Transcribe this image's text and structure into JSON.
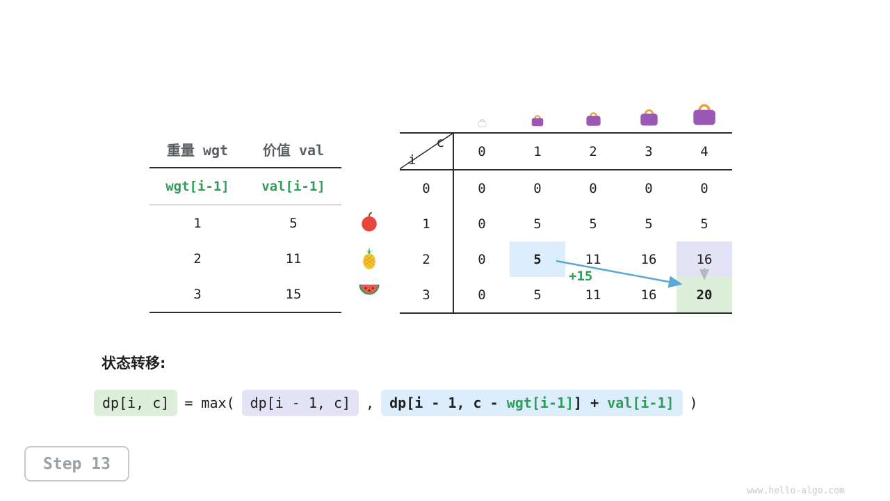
{
  "items_table": {
    "headers": [
      "重量 wgt",
      "价值 val"
    ],
    "var_row": [
      "wgt[i-1]",
      "val[i-1]"
    ],
    "rows": [
      [
        "1",
        "5"
      ],
      [
        "2",
        "11"
      ],
      [
        "3",
        "15"
      ]
    ]
  },
  "fruits": [
    {
      "icon": "apple-icon"
    },
    {
      "icon": "pineapple-icon"
    },
    {
      "icon": "watermelon-icon"
    }
  ],
  "dp_table": {
    "corner": {
      "col_var": "c",
      "row_var": "i"
    },
    "col_headers": [
      "0",
      "1",
      "2",
      "3",
      "4"
    ],
    "row_headers": [
      "0",
      "1",
      "2",
      "3"
    ],
    "rows": [
      [
        "0",
        "0",
        "0",
        "0",
        "0"
      ],
      [
        "0",
        "5",
        "5",
        "5",
        "5"
      ],
      [
        "0",
        "5",
        "11",
        "16",
        "16"
      ],
      [
        "0",
        "5",
        "11",
        "16",
        "20"
      ]
    ],
    "highlights": [
      {
        "row": 2,
        "col": 1,
        "style": "blue",
        "bold": true
      },
      {
        "row": 2,
        "col": 4,
        "style": "purple",
        "bold": false
      },
      {
        "row": 3,
        "col": 4,
        "style": "green",
        "bold": true
      }
    ],
    "bags": [
      {
        "icon": "handbag-icon",
        "ghost": true
      },
      {
        "icon": "handbag-icon",
        "ghost": false
      },
      {
        "icon": "handbag-icon",
        "ghost": false
      },
      {
        "icon": "handbag-icon",
        "ghost": false
      },
      {
        "icon": "handbag-icon",
        "ghost": false
      }
    ],
    "transition_annotation": "+15"
  },
  "transition": {
    "label": "状态转移:",
    "formula": {
      "lhs": "dp[i, c]",
      "operator": "= max(",
      "arg1": "dp[i - 1, c]",
      "separator": ",",
      "arg2_parts": [
        {
          "text": "dp[i - 1, c - ",
          "green": false
        },
        {
          "text": "wgt[i-1]",
          "green": true
        },
        {
          "text": "] + ",
          "green": false
        },
        {
          "text": "val[i-1]",
          "green": true
        }
      ],
      "close": ")"
    }
  },
  "step_badge": "Step 13",
  "watermark": "www.hello-algo.com",
  "colors": {
    "accent_green": "#2e9e57",
    "arrow_blue": "#5aa7d8",
    "arrow_gray": "#b8b8b8",
    "hl_blue": "#dcedfb",
    "hl_purple": "#e3e3f5",
    "hl_green": "#ddeeda",
    "bag_purple": "#9b59b6",
    "bag_handle": "#e8a33d"
  }
}
